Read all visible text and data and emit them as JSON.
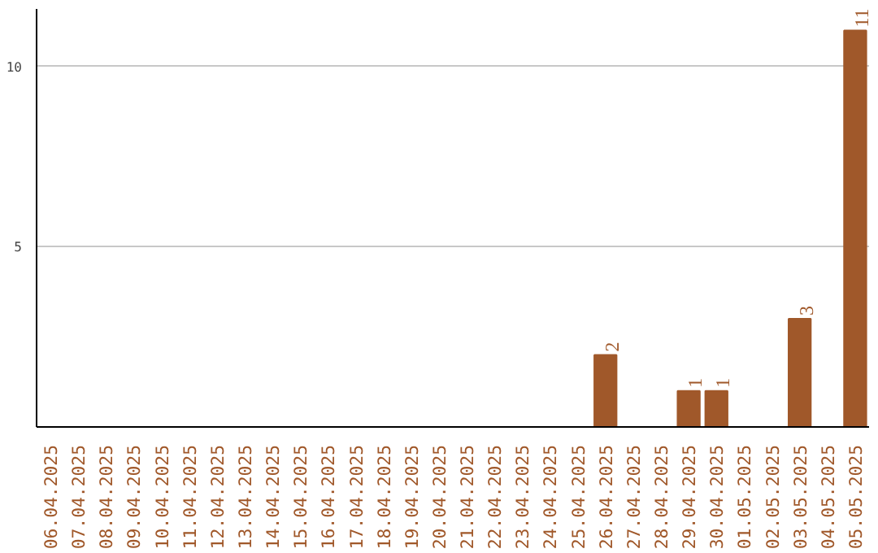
{
  "chart_data": {
    "type": "bar",
    "categories": [
      "06.04.2025",
      "07.04.2025",
      "08.04.2025",
      "09.04.2025",
      "10.04.2025",
      "11.04.2025",
      "12.04.2025",
      "13.04.2025",
      "14.04.2025",
      "15.04.2025",
      "16.04.2025",
      "17.04.2025",
      "18.04.2025",
      "19.04.2025",
      "20.04.2025",
      "21.04.2025",
      "22.04.2025",
      "23.04.2025",
      "24.04.2025",
      "25.04.2025",
      "26.04.2025",
      "27.04.2025",
      "28.04.2025",
      "29.04.2025",
      "30.04.2025",
      "01.05.2025",
      "02.05.2025",
      "03.05.2025",
      "04.05.2025",
      "05.05.2025"
    ],
    "values": [
      0,
      0,
      0,
      0,
      0,
      0,
      0,
      0,
      0,
      0,
      0,
      0,
      0,
      0,
      0,
      0,
      0,
      0,
      0,
      0,
      2,
      0,
      0,
      1,
      1,
      0,
      0,
      3,
      0,
      11
    ],
    "value_labels": [
      null,
      null,
      null,
      null,
      null,
      null,
      null,
      null,
      null,
      null,
      null,
      null,
      null,
      null,
      null,
      null,
      null,
      null,
      null,
      null,
      "2",
      null,
      null,
      "1",
      "1",
      null,
      null,
      "3",
      null,
      "11"
    ],
    "color": "#a0582a",
    "ylim": [
      0,
      11.6
    ],
    "yticks": [
      5,
      10
    ],
    "grid": "y"
  }
}
